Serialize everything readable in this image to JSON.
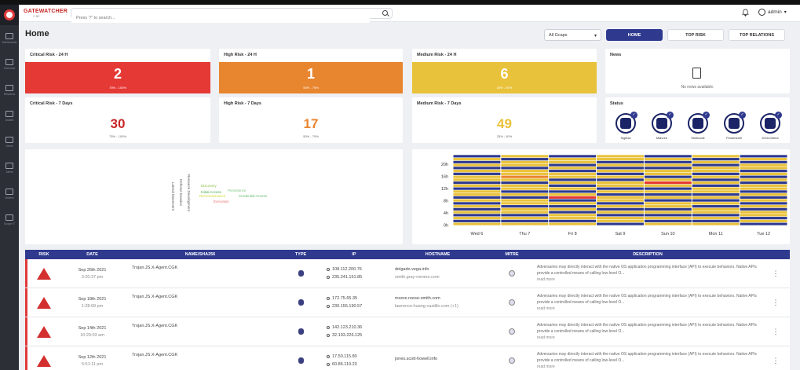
{
  "sidebar": {
    "items": [
      "Dashboards",
      "Overview",
      "Relations",
      "Assets",
      "Users",
      "Alerts",
      "Drivers",
      "Scope IT"
    ]
  },
  "topbar": {
    "brand": "GATEWATCHER",
    "brand_sub": "C-NE",
    "search_placeholder": "Press \"/\" to search...",
    "user": "admin"
  },
  "page": {
    "title": "Home",
    "gcap_select": "All Gcaps",
    "nav": {
      "home": "HOME",
      "top_risk": "TOP RISK",
      "top_relations": "TOP RELATIONS"
    }
  },
  "risk_24h": [
    {
      "title": "Critical Risk - 24 H",
      "value": "2",
      "range": "75% - 100%",
      "color": "#e53935"
    },
    {
      "title": "High Risk - 24 H",
      "value": "1",
      "range": "50% - 75%",
      "color": "#e8852f"
    },
    {
      "title": "Medium Risk - 24 H",
      "value": "6",
      "range": "25% - 50%",
      "color": "#e9c23b"
    }
  ],
  "risk_7d": [
    {
      "title": "Critical Risk - 7 Days",
      "value": "30",
      "range": "75% - 100%",
      "color": "#c62828"
    },
    {
      "title": "High Risk - 7 Days",
      "value": "17",
      "range": "50% - 75%",
      "color": "#e8852f"
    },
    {
      "title": "Medium Risk - 7 Days",
      "value": "49",
      "range": "25% - 50%",
      "color": "#e9c23b"
    }
  ],
  "news": {
    "title": "News",
    "empty": "No news available."
  },
  "status": {
    "title": "Status",
    "items": [
      "Sigflow",
      "Malcore",
      "Shellcode",
      "Powershell",
      "DGA Detect"
    ]
  },
  "wordcloud": [
    "Discovery",
    "Initial Access",
    "Persistence",
    "Reconnaissance",
    "Credential Access",
    "Execution",
    "Resource Development",
    "Defense Evasion",
    "Lateral Movement"
  ],
  "chart_data": {
    "type": "heatmap",
    "x_labels": [
      "Wed 6",
      "Thu 7",
      "Fri 8",
      "Sat 9",
      "Sun 10",
      "Mon 11",
      "Tue 12"
    ],
    "y_labels": [
      "20h",
      "16h",
      "12h",
      "8h",
      "4h",
      "0h"
    ],
    "colors": {
      "none": "#2f3a8f",
      "medium": "#e9c23b",
      "high": "#e8852f",
      "critical": "#e53935"
    }
  },
  "table": {
    "headers": [
      "RISK",
      "DATE",
      "NAME/SHA256",
      "TYPE",
      "IP",
      "HOSTNAME",
      "MITRE",
      "DESCRIPTION"
    ],
    "rows": [
      {
        "date": "Sep 26th 2021",
        "time": "3:20:37 pm",
        "name": "Trojan.JS.X-Agent.CGK",
        "ip1": "108.112.200.76",
        "ip2": "235.241.161.85",
        "host1": "delgado.vega.info",
        "host2": "smith.gray-romero.com",
        "desc": "Adversaries may directly interact with the native OS application programming interface (API) to execute behaviors. Native APIs provide a controlled means of calling low-level O...",
        "more": "read more"
      },
      {
        "date": "Sep 18th 2021",
        "time": "1:28:09 pm",
        "name": "Trojan.JS.X-Agent.CGK",
        "ip1": "172.75.65.35",
        "ip2": "230.155.190.57",
        "host1": "moore.reese-smith.com",
        "host2": "lawrence.huang-castillo.com (+1)",
        "desc": "Adversaries may directly interact with the native OS application programming interface (API) to execute behaviors. Native APIs provide a controlled means of calling low-level O...",
        "more": "read more"
      },
      {
        "date": "Sep 14th 2021",
        "time": "10:29:03 am",
        "name": "Trojan.JS.X-Agent.CGK",
        "ip1": "142.123.210.36",
        "ip2": "32.193.226.125",
        "host1": "",
        "host2": "",
        "desc": "Adversaries may directly interact with the native OS application programming interface (API) to execute behaviors. Native APIs provide a controlled means of calling low-level O...",
        "more": "read more"
      },
      {
        "date": "Sep 12th 2021",
        "time": "5:51:11 pm",
        "name": "Trojan.JS.X-Agent.CGK",
        "ip1": "17.50.115.80",
        "ip2": "60.86.119.23",
        "host1": "jones.scott-howell.info",
        "host2": "",
        "desc": "Adversaries may directly interact with the native OS application programming interface (API) to execute behaviors. Native APIs provide a controlled means of calling low-level O...",
        "more": "read more"
      }
    ]
  }
}
